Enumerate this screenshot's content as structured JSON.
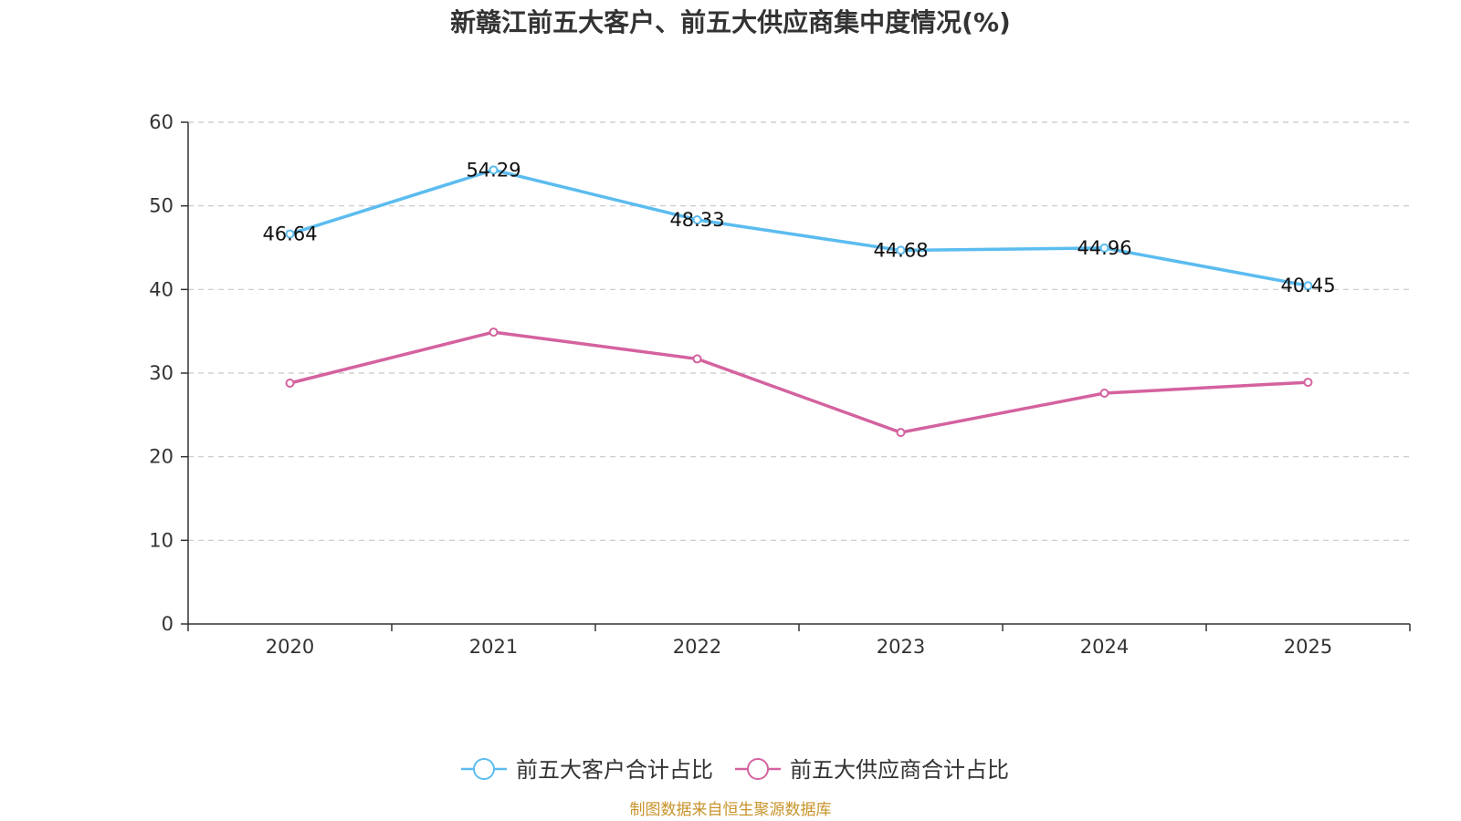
{
  "chart_data": {
    "type": "line",
    "title": "新赣江前五大客户、前五大供应商集中度情况(%)",
    "categories": [
      "2020",
      "2021",
      "2022",
      "2023",
      "2024",
      "2025"
    ],
    "ylim": [
      0,
      60
    ],
    "yticks": [
      0,
      10,
      20,
      30,
      40,
      50,
      60
    ],
    "grid": true,
    "legend_position": "bottom-center",
    "series": [
      {
        "name": "前五大客户合计占比",
        "color": "#5bbcef",
        "values": [
          46.64,
          54.29,
          48.33,
          44.68,
          44.96,
          40.45
        ],
        "labels": [
          "46.64",
          "54.29",
          "48.33",
          "44.68",
          "44.96",
          "40.45"
        ],
        "show_labels": true
      },
      {
        "name": "前五大供应商合计占比",
        "color": "#d4629f",
        "values": [
          28.8,
          34.9,
          31.7,
          22.9,
          27.6,
          28.9
        ],
        "show_labels": false
      }
    ],
    "source": "制图数据来自恒生聚源数据库",
    "source_color": "#c8932a"
  }
}
